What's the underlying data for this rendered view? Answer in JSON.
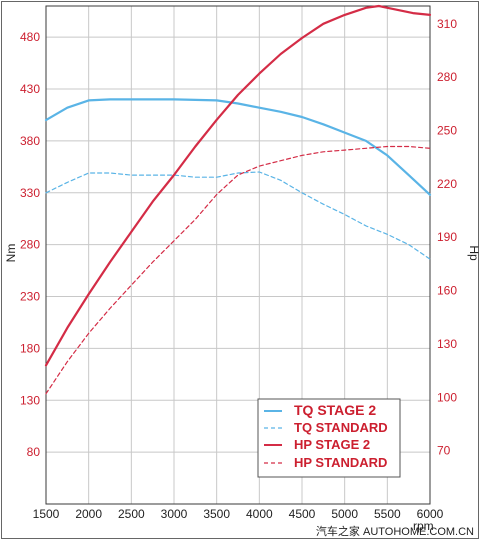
{
  "chart_data": {
    "type": "line",
    "xlabel": "rpm",
    "ylabel_left": "Nm",
    "ylabel_right": "Hp",
    "xlim": [
      1500,
      6000
    ],
    "xticks": [
      1500,
      2000,
      2500,
      3000,
      3500,
      4000,
      4500,
      5000,
      5500,
      6000
    ],
    "ylim_left": [
      30,
      510
    ],
    "yticks_left": [
      80,
      130,
      180,
      230,
      280,
      330,
      380,
      430,
      480
    ],
    "ylim_right": [
      40,
      320
    ],
    "yticks_right": [
      70,
      100,
      130,
      160,
      190,
      220,
      250,
      280,
      310
    ],
    "grid": true,
    "legend_position": "bottom-right",
    "series": [
      {
        "name": "TQ STAGE 2",
        "axis": "left",
        "color": "#5ab4e6",
        "style": "solid",
        "x": [
          1500,
          1750,
          2000,
          2250,
          2500,
          3000,
          3500,
          3750,
          4000,
          4250,
          4500,
          4750,
          5000,
          5250,
          5500,
          5750,
          6000
        ],
        "y": [
          400,
          412,
          419,
          420,
          420,
          420,
          419,
          416,
          412,
          408,
          403,
          396,
          388,
          380,
          366,
          347,
          328
        ]
      },
      {
        "name": "TQ STANDARD",
        "axis": "left",
        "color": "#5ab4e6",
        "style": "dashed",
        "x": [
          1500,
          1750,
          2000,
          2250,
          2500,
          3000,
          3250,
          3500,
          3750,
          4000,
          4250,
          4500,
          4750,
          5000,
          5250,
          5500,
          5750,
          6000
        ],
        "y": [
          330,
          340,
          349,
          349,
          347,
          347,
          345,
          345,
          349,
          350,
          342,
          330,
          319,
          309,
          298,
          290,
          280,
          266
        ]
      },
      {
        "name": "HP STAGE 2",
        "axis": "right",
        "color": "#d42c46",
        "style": "solid",
        "x": [
          1500,
          1750,
          2000,
          2250,
          2500,
          2750,
          3000,
          3250,
          3500,
          3750,
          4000,
          4250,
          4500,
          4750,
          5000,
          5250,
          5400,
          5600,
          5800,
          6000
        ],
        "y": [
          118,
          139,
          158,
          176,
          193,
          210,
          225,
          241,
          256,
          270,
          282,
          293,
          302,
          310,
          315,
          319,
          320,
          318,
          316,
          315
        ]
      },
      {
        "name": "HP STANDARD",
        "axis": "right",
        "color": "#d42c46",
        "style": "dashed",
        "x": [
          1500,
          1750,
          2000,
          2250,
          2500,
          2750,
          3000,
          3250,
          3500,
          3750,
          4000,
          4250,
          4500,
          4750,
          5000,
          5250,
          5500,
          5750,
          6000
        ],
        "y": [
          102,
          120,
          136,
          150,
          163,
          176,
          188,
          200,
          214,
          225,
          230,
          233,
          236,
          238,
          239,
          240,
          241,
          241,
          240
        ]
      }
    ]
  },
  "watermark": "汽车之家 AUTOHOME.COM.CN",
  "colors": {
    "frame": "#3a3a3a",
    "grid": "#c8c8c8",
    "tick_red": "#cc1f2f"
  }
}
